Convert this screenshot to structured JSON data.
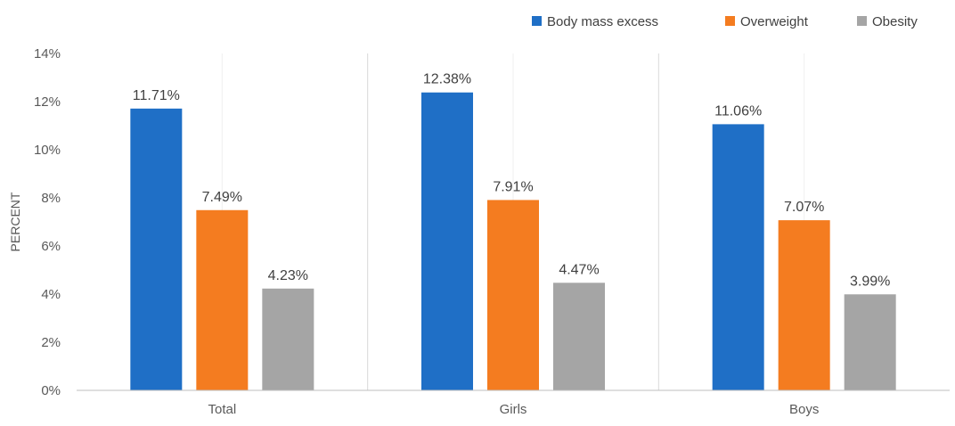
{
  "chart_data": {
    "type": "bar",
    "title": "",
    "xlabel": "",
    "ylabel": "PERCENT",
    "categories": [
      "Total",
      "Girls",
      "Boys"
    ],
    "series": [
      {
        "name": "Body mass excess",
        "color": "#1f6fc6",
        "values": [
          11.71,
          12.38,
          11.06
        ],
        "labels": [
          "11.71%",
          "12.38%",
          "11.06%"
        ]
      },
      {
        "name": "Overweight",
        "color": "#f47c20",
        "values": [
          7.49,
          7.91,
          7.07
        ],
        "labels": [
          "7.49%",
          "7.91%",
          "7.07%"
        ]
      },
      {
        "name": "Obesity",
        "color": "#a5a5a5",
        "values": [
          4.23,
          4.47,
          3.99
        ],
        "labels": [
          "4.23%",
          "4.47%",
          "3.99%"
        ]
      }
    ],
    "ylim": [
      0,
      14
    ],
    "yticks": [
      0,
      2,
      4,
      6,
      8,
      10,
      12,
      14
    ],
    "ytick_labels": [
      "0%",
      "2%",
      "4%",
      "6%",
      "8%",
      "10%",
      "12%",
      "14%"
    ],
    "grid": "vertical separators between categories",
    "legend_position": "top-right"
  }
}
